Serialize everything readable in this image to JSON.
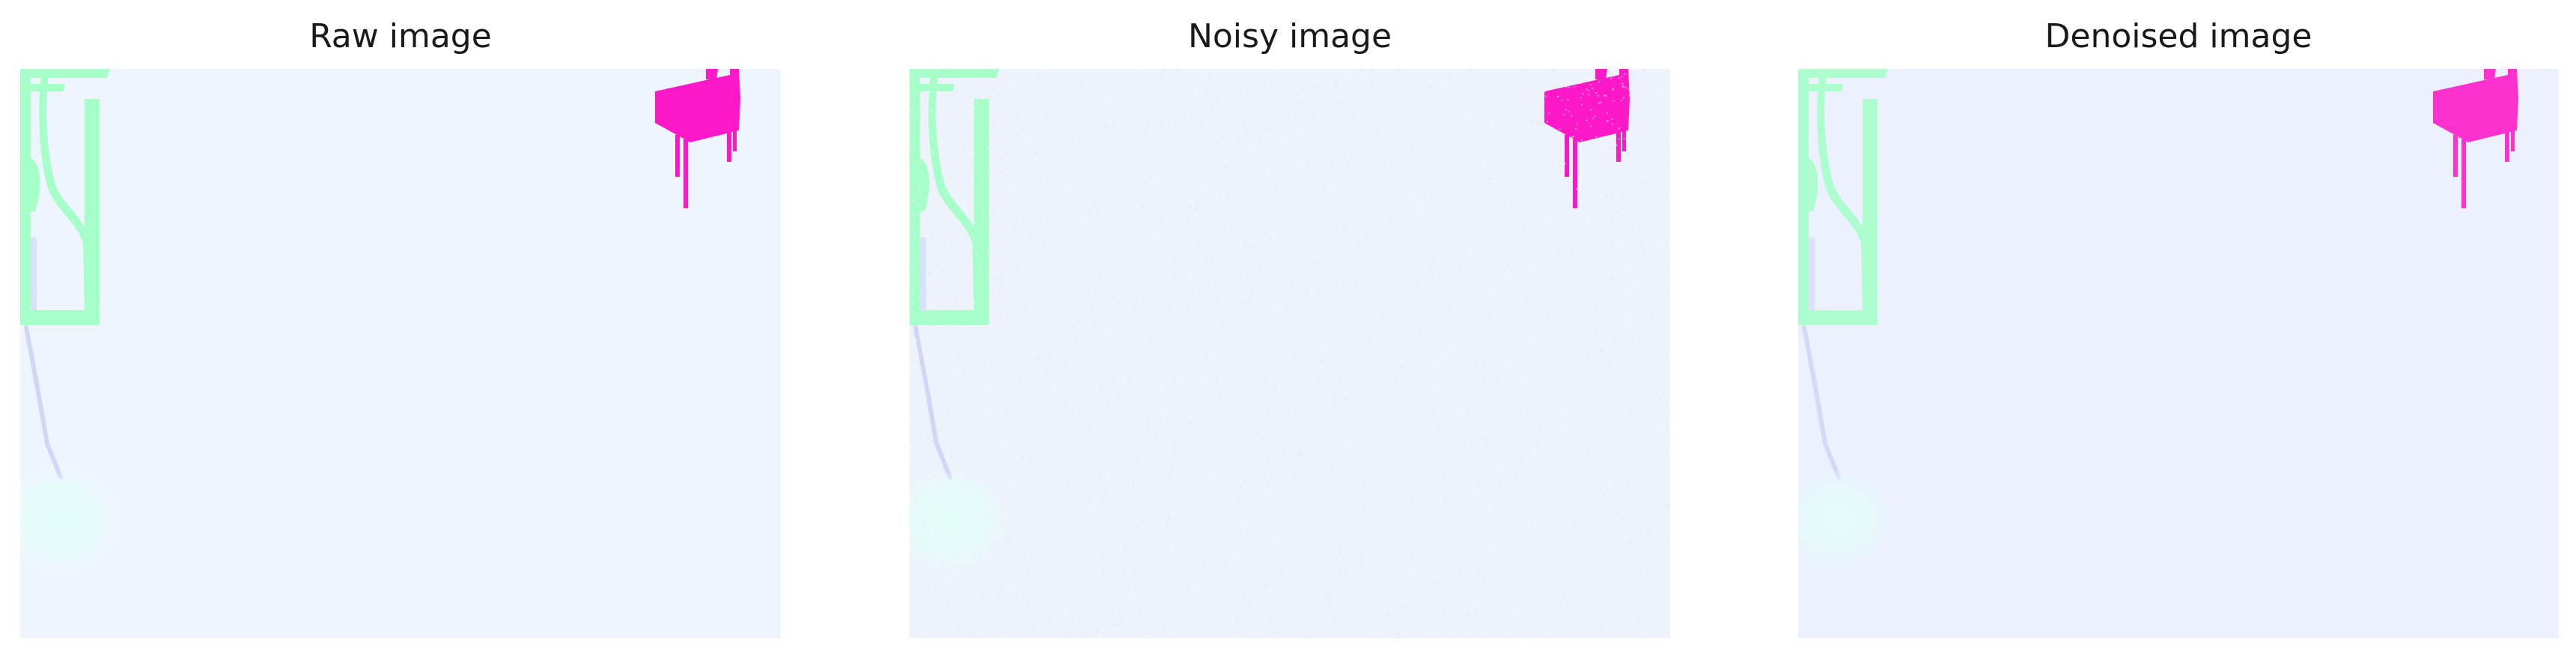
{
  "figure": {
    "panels": [
      {
        "id": "raw",
        "title": "Raw image",
        "style": "raw"
      },
      {
        "id": "noisy",
        "title": "Noisy image",
        "style": "noisy"
      },
      {
        "id": "denoised",
        "title": "Denoised image",
        "style": "denoised"
      }
    ]
  },
  "colors": {
    "background_raw": "#eff5ff",
    "background_noisy": "#eef3fb",
    "background_denoised": "#edf1fe",
    "green_object": "#a6ffc9",
    "magenta_object": "#ff18c8",
    "lavender_strip": "#d3d8fb",
    "lavender_line": "#cfd2f6",
    "cyan_blob": "#e2fff9"
  }
}
